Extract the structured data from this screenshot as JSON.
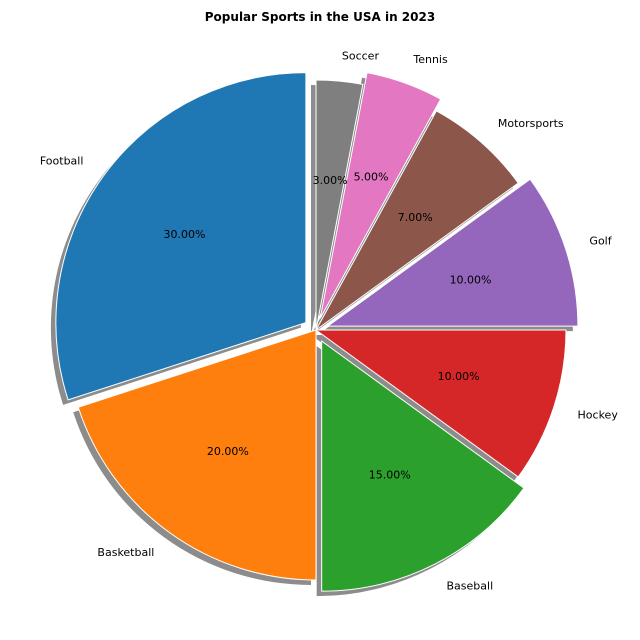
{
  "chart_data": {
    "type": "pie",
    "title": "Popular Sports in the USA in 2023",
    "start_angle_deg": 90,
    "direction": "counterclockwise",
    "shadow": true,
    "labels": [
      "Football",
      "Basketball",
      "Baseball",
      "Hockey",
      "Golf",
      "Motorsports",
      "Tennis",
      "Soccer"
    ],
    "values": [
      30,
      20,
      15,
      10,
      10,
      7,
      5,
      3
    ],
    "pct_labels": [
      "30.00%",
      "20.00%",
      "15.00%",
      "10.00%",
      "10.00%",
      "7.00%",
      "5.00%",
      "3.00%"
    ],
    "explode": [
      0.05,
      0,
      0.05,
      0,
      0.05,
      0,
      0.05,
      0
    ],
    "colors": [
      "#1f77b4",
      "#ff7f0e",
      "#2ca02c",
      "#d62728",
      "#9467bd",
      "#8c564b",
      "#e377c2",
      "#7f7f7f"
    ]
  }
}
